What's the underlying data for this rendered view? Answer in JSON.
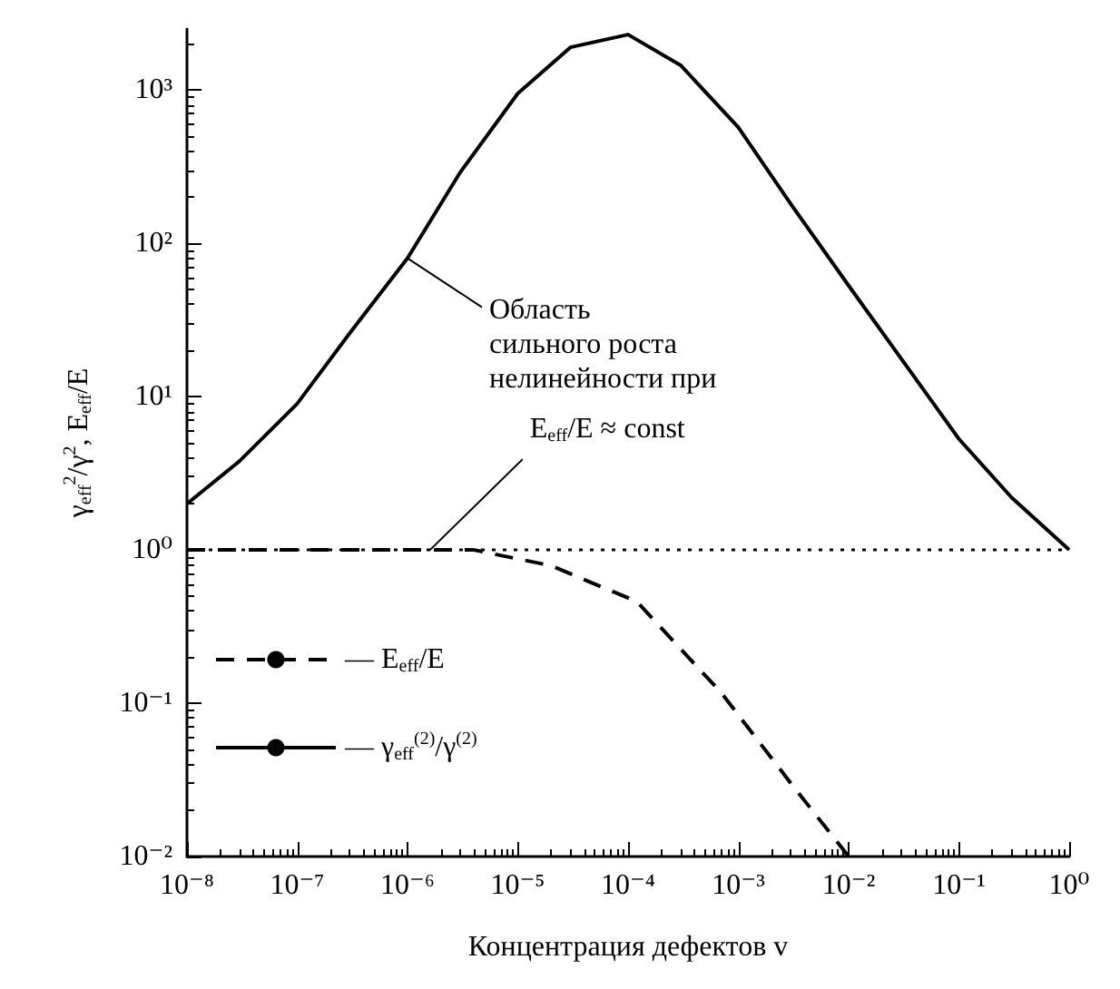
{
  "chart_data": {
    "type": "line",
    "xlabel": "Концентрация дефектов v",
    "ylabel": "γ$_{eff}$$^{2}$/γ$^{2}$, E$_{eff}$/E",
    "log": "xy",
    "grid": false,
    "marker": "none",
    "legend": "bottom left",
    "xlim": [
      1e-08,
      1
    ],
    "ylim": [
      0.01,
      2500
    ],
    "xticks": [
      {
        "value": 1e-08,
        "label": "10⁻⁸"
      },
      {
        "value": 1e-07,
        "label": "10⁻⁷"
      },
      {
        "value": 1e-06,
        "label": "10⁻⁶"
      },
      {
        "value": 1e-05,
        "label": "10⁻⁵"
      },
      {
        "value": 0.0001,
        "label": "10⁻⁴"
      },
      {
        "value": 0.001,
        "label": "10⁻³"
      },
      {
        "value": 0.01,
        "label": "10⁻²"
      },
      {
        "value": 0.1,
        "label": "10⁻¹"
      },
      {
        "value": 1,
        "label": "10⁰"
      }
    ],
    "yticks": [
      {
        "value": 0.01,
        "label": "10⁻²"
      },
      {
        "value": 0.1,
        "label": "10⁻¹"
      },
      {
        "value": 1,
        "label": "10⁰"
      },
      {
        "value": 10,
        "label": "10¹"
      },
      {
        "value": 100,
        "label": "10²"
      },
      {
        "value": 1000,
        "label": "10³"
      }
    ],
    "series": [
      {
        "name": "— E$_{eff}$/E",
        "color": "#000000",
        "line_style": "dashed",
        "x": [
          1e-08,
          1e-07,
          1e-06,
          4e-06,
          2e-05,
          0.00012,
          0.0007,
          0.003,
          0.01
        ],
        "values": [
          1,
          1,
          1,
          1,
          0.79,
          0.46,
          0.117,
          0.03,
          0.01
        ]
      },
      {
        "name": "— γ$_{eff}$$^{(2)}$/γ$^{(2)}$",
        "color": "#000000",
        "line_style": "solid",
        "x": [
          1e-08,
          3e-08,
          1e-07,
          3e-07,
          1e-06,
          3e-06,
          1e-05,
          3e-05,
          0.0001,
          0.0003,
          0.001,
          0.003,
          0.01,
          0.1,
          0.3,
          1
        ],
        "values": [
          2,
          3.8,
          9,
          26,
          80,
          290,
          950,
          1900,
          2300,
          1450,
          570,
          180,
          53,
          5.3,
          2.2,
          1
        ]
      }
    ],
    "ref_lines": [
      {
        "axis": "y",
        "value": 1,
        "line_style": "dotted",
        "color": "#000000"
      }
    ],
    "annotations": [
      {
        "text": "Область\nсильного роста\nнелинейности при",
        "x": 1e-06,
        "y": 80
      },
      {
        "text": "E$_{eff}$/E ≈ const",
        "x": 1.6e-06,
        "y": 1
      }
    ]
  }
}
